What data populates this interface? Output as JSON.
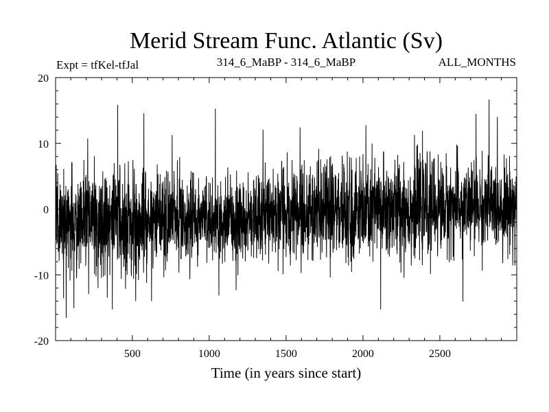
{
  "chart_data": {
    "type": "line",
    "title": "Merid Stream Func. Atlantic (Sv)",
    "subtitle_left": "Expt = tfKel-tfJal",
    "subtitle_center": "314_6_MaBP - 314_6_MaBP",
    "subtitle_right": "ALL_MONTHS",
    "xlabel": "Time (in years since start)",
    "ylabel": "",
    "xlim": [
      1,
      3000
    ],
    "ylim": [
      -20,
      20
    ],
    "x_ticks": [
      500,
      1000,
      1500,
      2000,
      2500
    ],
    "y_ticks": [
      -20,
      -10,
      0,
      10,
      20
    ],
    "grid": false,
    "colors": {
      "line": "#000000",
      "axes": "#000000",
      "background": "#ffffff"
    },
    "series": [
      {
        "n_points": 3000,
        "x_start": 1,
        "x_end": 3000,
        "mean_by_year": {
          "x": [
            1,
            250,
            500,
            750,
            1000,
            1250,
            1350,
            1500,
            1750,
            2000,
            2250,
            2500,
            2750,
            3000
          ],
          "y": [
            -1.5,
            -2.0,
            -1.8,
            -1.5,
            -1.5,
            -1.8,
            -0.5,
            -0.5,
            -0.5,
            -0.3,
            0.0,
            0.3,
            0.5,
            0.5
          ]
        },
        "notable_extremes": [
          {
            "x": 70,
            "y": -16.5
          },
          {
            "x": 120,
            "y": -15.0
          },
          {
            "x": 370,
            "y": -15.2
          },
          {
            "x": 405,
            "y": 15.8
          },
          {
            "x": 575,
            "y": 14.5
          },
          {
            "x": 1040,
            "y": 15.2
          },
          {
            "x": 1350,
            "y": 12.0
          },
          {
            "x": 2115,
            "y": -15.2
          },
          {
            "x": 2650,
            "y": -14.0
          },
          {
            "x": 2820,
            "y": 16.6
          },
          {
            "x": 2735,
            "y": 14.4
          }
        ]
      }
    ]
  }
}
